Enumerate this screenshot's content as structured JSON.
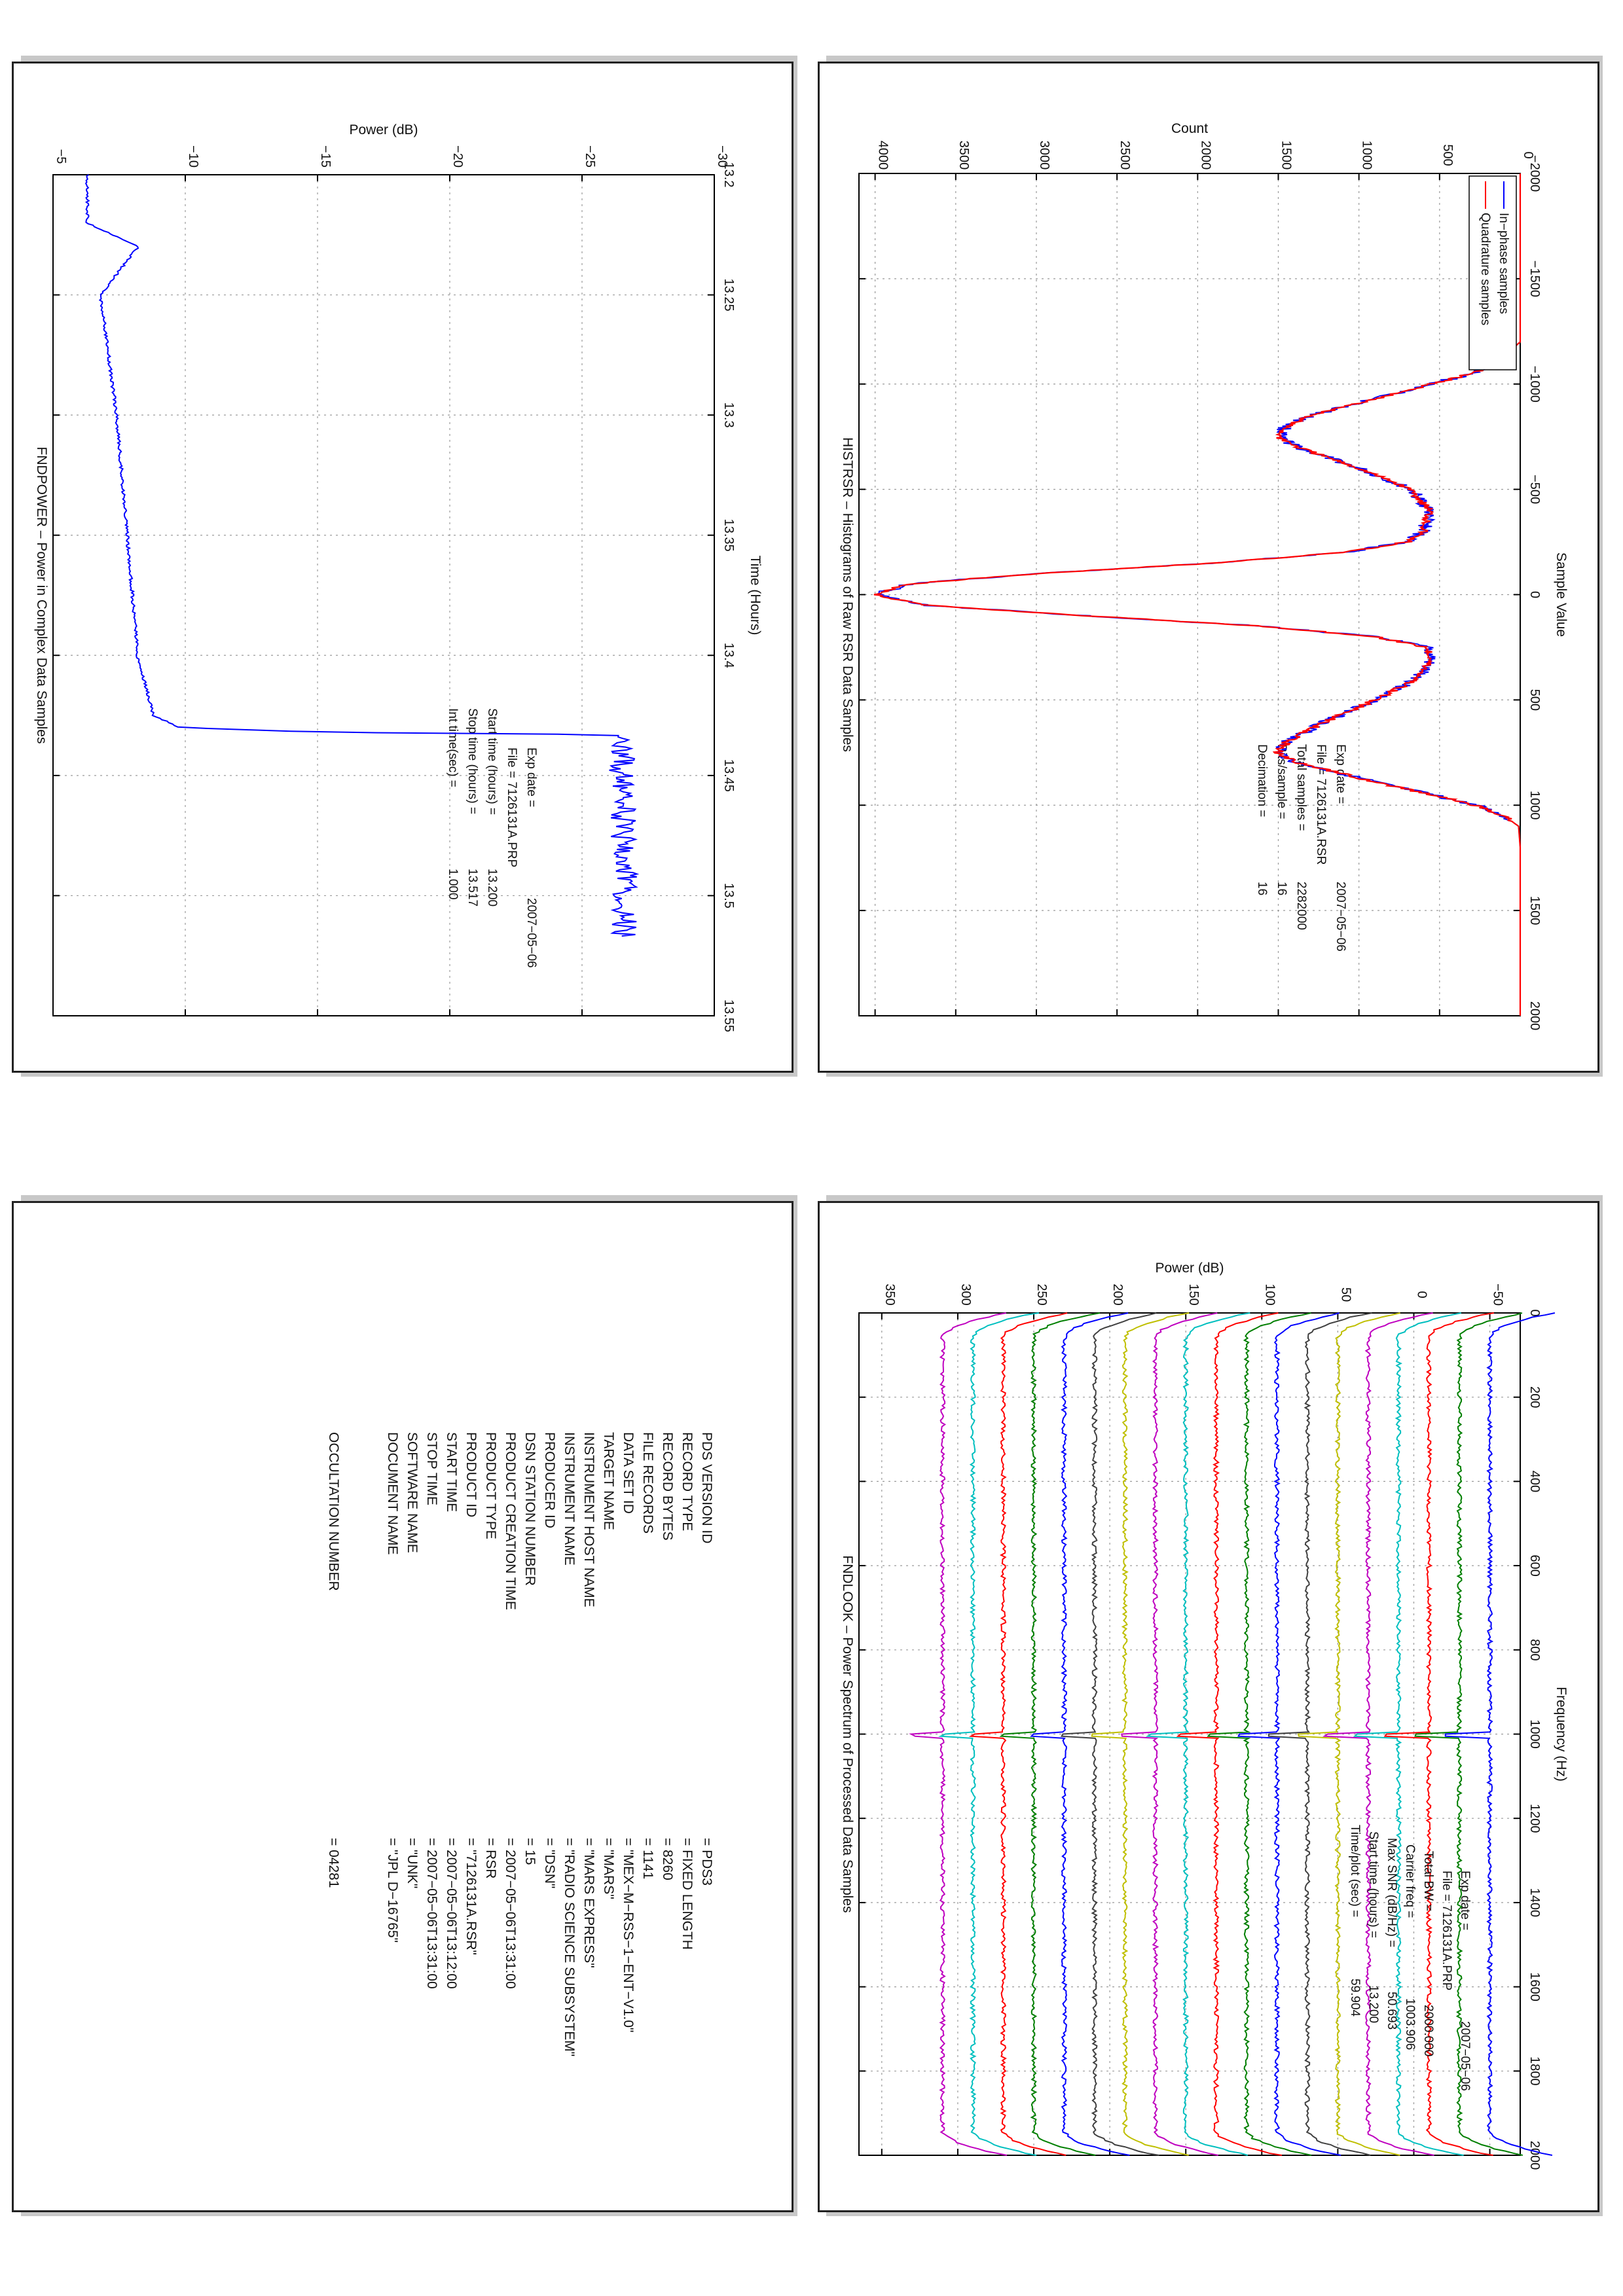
{
  "chart_data": [
    {
      "type": "line",
      "title": "HISTRSR – Histograms of Raw RSR Data Samples",
      "xlabel": "Sample Value",
      "ylabel": "Count",
      "xlim": [
        -2000,
        2000
      ],
      "ylim": [
        0,
        4100
      ],
      "x_ticks": [
        "−2000",
        "−1500",
        "−1000",
        "−500",
        "0",
        "500",
        "1000",
        "1500",
        "2000"
      ],
      "y_ticks": [
        "0",
        "500",
        "1000",
        "1500",
        "2000",
        "2500",
        "3000",
        "3500",
        "4000"
      ],
      "grid": true,
      "legend_position": "top-left",
      "series": [
        {
          "name": "In−phase samples",
          "color": "#0000ff"
        },
        {
          "name": "Quadrature samples",
          "color": "#ff0000"
        }
      ],
      "x": [
        -2000,
        -1200,
        -1100,
        -1050,
        -1000,
        -950,
        -900,
        -850,
        -800,
        -750,
        -700,
        -600,
        -500,
        -400,
        -300,
        -250,
        -200,
        -150,
        -100,
        -50,
        0,
        50,
        100,
        150,
        200,
        250,
        300,
        400,
        500,
        600,
        700,
        750,
        800,
        850,
        900,
        950,
        1000,
        1050,
        1100,
        1200,
        2000
      ],
      "values": [
        0,
        0,
        150,
        300,
        550,
        800,
        1050,
        1300,
        1450,
        1500,
        1380,
        1000,
        680,
        560,
        600,
        700,
        1100,
        1900,
        3000,
        3800,
        4000,
        3700,
        2700,
        1600,
        900,
        580,
        550,
        640,
        900,
        1200,
        1450,
        1500,
        1380,
        1100,
        850,
        550,
        280,
        100,
        10,
        0,
        0
      ],
      "annotations": [
        {
          "key": "Exp date =",
          "value": "2007−05−06"
        },
        {
          "key": "File = 7126131A.RSR",
          "value": ""
        },
        {
          "key": "Total samples =",
          "value": "2282000"
        },
        {
          "key": "Bits/sample   =",
          "value": "16"
        },
        {
          "key": "Decimation    =",
          "value": "16"
        }
      ]
    },
    {
      "type": "line",
      "title": "FNDPOWER – Power in Complex Data Samples",
      "xlabel": "Time (Hours)",
      "ylabel": "Power (dB)",
      "xlim": [
        13.2,
        13.55
      ],
      "ylim": [
        -30,
        -5
      ],
      "x_ticks": [
        "13.2",
        "13.25",
        "13.3",
        "13.35",
        "13.4",
        "13.45",
        "13.5",
        "13.55"
      ],
      "y_ticks": [
        "−30",
        "−25",
        "−20",
        "−15",
        "−10",
        "−5"
      ],
      "grid": true,
      "series": [
        {
          "name": "",
          "color": "#0000ff"
        }
      ],
      "x": [
        13.2,
        13.22,
        13.23,
        13.25,
        13.3,
        13.35,
        13.4,
        13.425,
        13.43,
        13.432,
        13.433,
        13.435,
        13.45,
        13.5,
        13.517
      ],
      "values": [
        -6.3,
        -6.3,
        -8.2,
        -6.8,
        -7.4,
        -7.8,
        -8.2,
        -8.8,
        -9.8,
        -15,
        -26.3,
        -26.5,
        -26.5,
        -26.6,
        -26.6
      ],
      "annotations": [
        {
          "key": "Exp date =",
          "value": "2007−05−06"
        },
        {
          "key": "File = 7126131A.PRP",
          "value": ""
        },
        {
          "key": "Start time (hours) =",
          "value": "13.200"
        },
        {
          "key": "Stop time (hours) =",
          "value": "13.517"
        },
        {
          "key": "Int time(sec) =",
          "value": "1.000"
        }
      ]
    },
    {
      "type": "line",
      "title": "FNDLOOK – Power Spectrum of Processed Data Samples",
      "xlabel": "Frequency (Hz)",
      "ylabel": "Power (dB)",
      "xlim": [
        0,
        2000
      ],
      "ylim": [
        -70,
        365
      ],
      "x_ticks": [
        "0",
        "200",
        "400",
        "600",
        "800",
        "1000",
        "1200",
        "1400",
        "1600",
        "1800",
        "2000"
      ],
      "y_ticks": [
        "−50",
        "0",
        "50",
        "100",
        "150",
        "200",
        "250",
        "300",
        "350"
      ],
      "grid": true,
      "carrier_freq": 1003.906,
      "trace_offsets": [
        -50,
        -30,
        -10,
        10,
        30,
        50,
        70,
        90,
        110,
        130,
        150,
        170,
        190,
        210,
        230,
        250,
        270,
        290,
        310
      ],
      "trace_colors": [
        "#0000ff",
        "#007f00",
        "#ff0000",
        "#00bfbf",
        "#bf00bf",
        "#bfbf00",
        "#404040",
        "#0000ff",
        "#007f00",
        "#ff0000",
        "#00bfbf",
        "#bf00bf",
        "#bfbf00",
        "#404040",
        "#0000ff",
        "#007f00",
        "#ff0000",
        "#00bfbf",
        "#bf00bf"
      ],
      "annotations": [
        {
          "key": "Exp date =",
          "value": "2007−05−06"
        },
        {
          "key": "File = 7126131A.PRP",
          "value": ""
        },
        {
          "key": "Total BW =",
          "value": "2000.000"
        },
        {
          "key": "Carrier freq =",
          "value": "1003.906"
        },
        {
          "key": "Max SNR (dB/Hz) =",
          "value": "50.693"
        },
        {
          "key": "Start time (hours) =",
          "value": "13.200"
        },
        {
          "key": "Time/plot (sec) =",
          "value": "59.904"
        }
      ]
    }
  ],
  "label": [
    {
      "key": "PDS VERSION ID",
      "value": "PDS3"
    },
    {
      "key": "RECORD TYPE",
      "value": "FIXED LENGTH"
    },
    {
      "key": "RECORD BYTES",
      "value": "8260"
    },
    {
      "key": "FILE RECORDS",
      "value": "1141"
    },
    {
      "key": "DATA SET ID",
      "value": "\"MEX−M−RSS−1−ENT−V1.0\""
    },
    {
      "key": "TARGET NAME",
      "value": "\"MARS\""
    },
    {
      "key": "INSTRUMENT HOST NAME",
      "value": "\"MARS EXPRESS\""
    },
    {
      "key": "INSTRUMENT NAME",
      "value": "\"RADIO SCIENCE SUBSYSTEM\""
    },
    {
      "key": "PRODUCER ID",
      "value": "\"DSN\""
    },
    {
      "key": "DSN STATION NUMBER",
      "value": "15"
    },
    {
      "key": "PRODUCT CREATION TIME",
      "value": "2007−05−06T13:31:00"
    },
    {
      "key": "PRODUCT TYPE",
      "value": "RSR"
    },
    {
      "key": "PRODUCT ID",
      "value": "\"7126131A.RSR\""
    },
    {
      "key": "START TIME",
      "value": "2007−05−06T13:12:00"
    },
    {
      "key": "STOP TIME",
      "value": "2007−05−06T13:31:00"
    },
    {
      "key": "SOFTWARE NAME",
      "value": "\"UNK\""
    },
    {
      "key": "DOCUMENT NAME",
      "value": "\"JPL D−16765\""
    },
    {
      "key": "OCCULTATION NUMBER",
      "value": "04281"
    }
  ],
  "equals_sign": "="
}
